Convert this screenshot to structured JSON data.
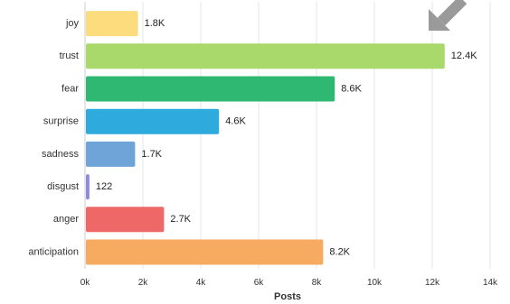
{
  "chart_data": {
    "type": "bar",
    "orientation": "horizontal",
    "categories": [
      "joy",
      "trust",
      "fear",
      "surprise",
      "sadness",
      "disgust",
      "anger",
      "anticipation"
    ],
    "values": [
      1800,
      12400,
      8600,
      4600,
      1700,
      122,
      2700,
      8200
    ],
    "data_labels": [
      "1.8K",
      "12.4K",
      "8.6K",
      "4.6K",
      "1.7K",
      "122",
      "2.7K",
      "8.2K"
    ],
    "colors": [
      "#fcdc7c",
      "#a9d96b",
      "#2fb872",
      "#2eaadd",
      "#6ea4d8",
      "#8e8ae0",
      "#ee6868",
      "#f6ab60"
    ],
    "xlabel": "Posts",
    "ylabel": "",
    "xlim": [
      0,
      14000
    ],
    "xticks": [
      0,
      2000,
      4000,
      6000,
      8000,
      10000,
      12000,
      14000
    ],
    "xtick_labels": [
      "0k",
      "2k",
      "4k",
      "6k",
      "8k",
      "10k",
      "12k",
      "14k"
    ],
    "grid": "vertical"
  },
  "overlay": {
    "arrow_icon": "arrow-down-left-icon",
    "arrow_color": "#9a9a9a"
  }
}
